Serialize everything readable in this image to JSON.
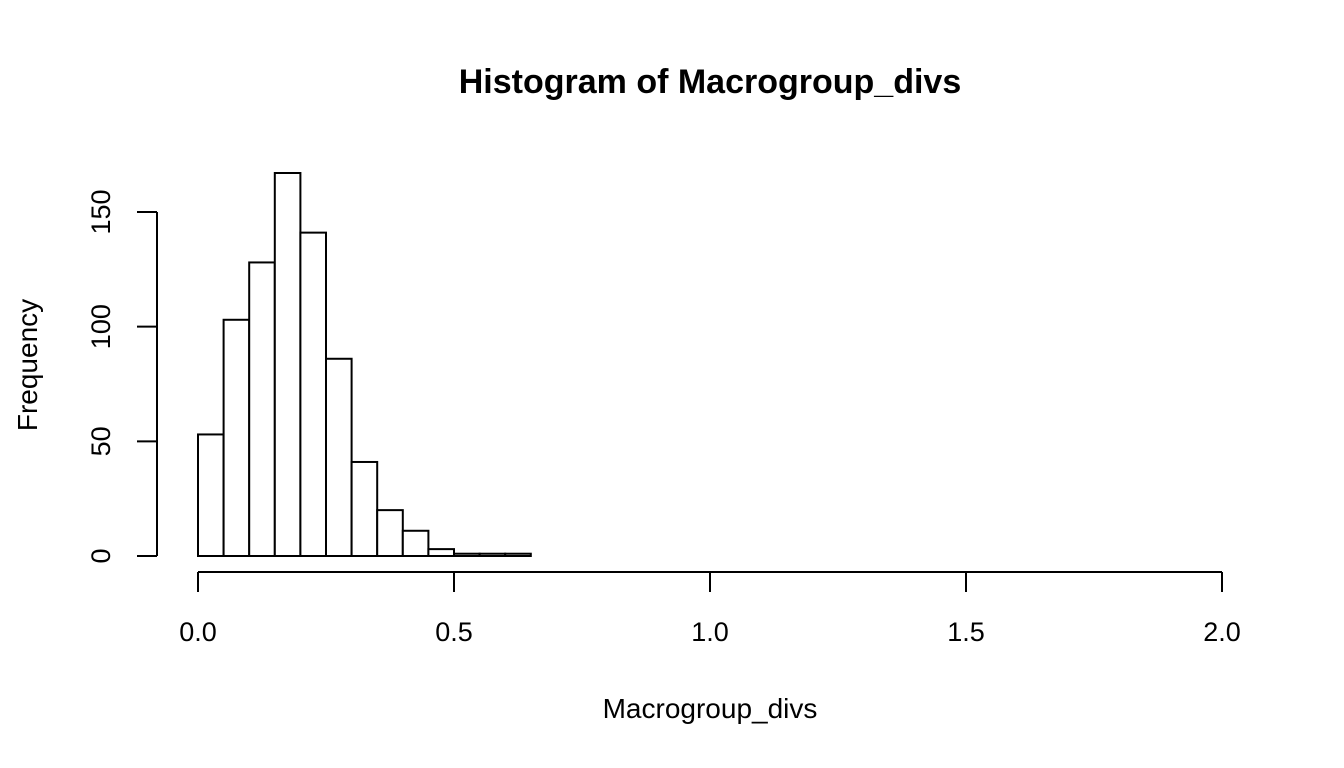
{
  "chart_data": {
    "type": "bar",
    "title": "Histogram of Macrogroup_divs",
    "xlabel": "Macrogroup_divs",
    "ylabel": "Frequency",
    "xlim": [
      0,
      2
    ],
    "ylim": [
      0,
      167
    ],
    "bin_width": 0.05,
    "bins": [
      {
        "x0": 0.0,
        "x1": 0.05,
        "count": 53
      },
      {
        "x0": 0.05,
        "x1": 0.1,
        "count": 103
      },
      {
        "x0": 0.1,
        "x1": 0.15,
        "count": 128
      },
      {
        "x0": 0.15,
        "x1": 0.2,
        "count": 167
      },
      {
        "x0": 0.2,
        "x1": 0.25,
        "count": 141
      },
      {
        "x0": 0.25,
        "x1": 0.3,
        "count": 86
      },
      {
        "x0": 0.3,
        "x1": 0.35,
        "count": 41
      },
      {
        "x0": 0.35,
        "x1": 0.4,
        "count": 20
      },
      {
        "x0": 0.4,
        "x1": 0.45,
        "count": 11
      },
      {
        "x0": 0.45,
        "x1": 0.5,
        "count": 3
      },
      {
        "x0": 0.5,
        "x1": 0.55,
        "count": 1
      },
      {
        "x0": 0.55,
        "x1": 0.6,
        "count": 1
      },
      {
        "x0": 0.6,
        "x1": 0.65,
        "count": 1
      }
    ],
    "x_ticks": [
      {
        "value": 0.0,
        "label": "0.0"
      },
      {
        "value": 0.5,
        "label": "0.5"
      },
      {
        "value": 1.0,
        "label": "1.0"
      },
      {
        "value": 1.5,
        "label": "1.5"
      },
      {
        "value": 2.0,
        "label": "2.0"
      }
    ],
    "y_ticks": [
      {
        "value": 0,
        "label": "0"
      },
      {
        "value": 50,
        "label": "50"
      },
      {
        "value": 100,
        "label": "100"
      },
      {
        "value": 150,
        "label": "150"
      }
    ],
    "grid": false,
    "legend": "none"
  }
}
